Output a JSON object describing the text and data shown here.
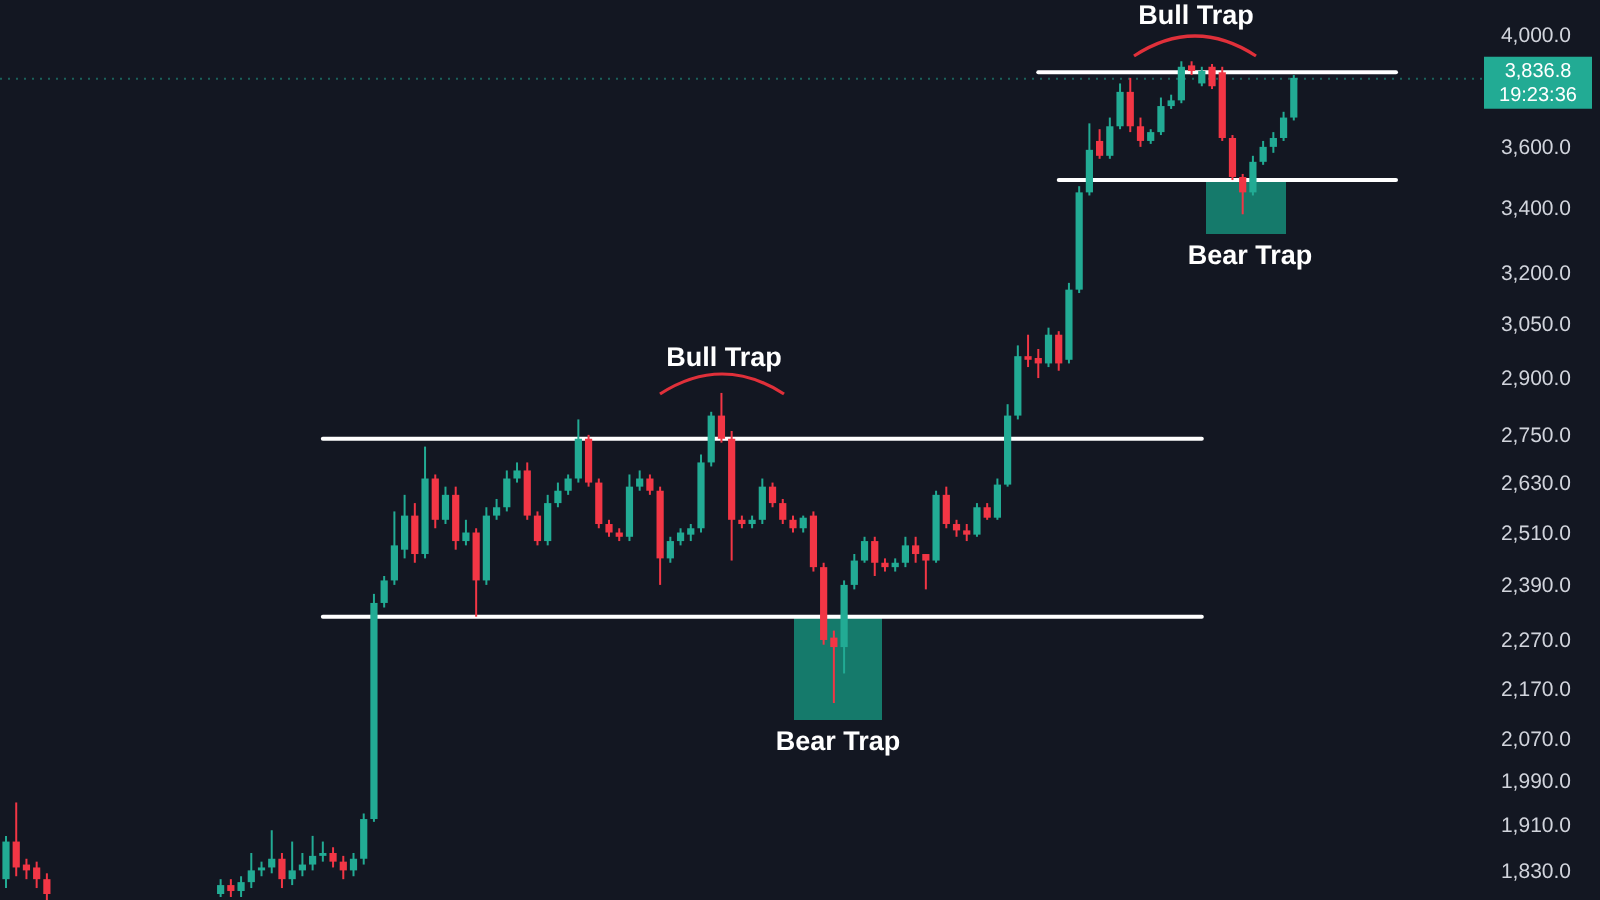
{
  "chart_data": {
    "type": "candlestick",
    "log": "y",
    "tick_labels": "y",
    "grid": false,
    "ylim": [
      1780,
      4130
    ],
    "yticks": [
      {
        "value": 4000,
        "label": "4,000.0"
      },
      {
        "value": 3600,
        "label": "3,600.0"
      },
      {
        "value": 3400,
        "label": "3,400.0"
      },
      {
        "value": 3200,
        "label": "3,200.0"
      },
      {
        "value": 3050,
        "label": "3,050.0"
      },
      {
        "value": 2900,
        "label": "2,900.0"
      },
      {
        "value": 2750,
        "label": "2,750.0"
      },
      {
        "value": 2630,
        "label": "2,630.0"
      },
      {
        "value": 2510,
        "label": "2,510.0"
      },
      {
        "value": 2390,
        "label": "2,390.0"
      },
      {
        "value": 2270,
        "label": "2,270.0"
      },
      {
        "value": 2170,
        "label": "2,170.0"
      },
      {
        "value": 2070,
        "label": "2,070.0"
      },
      {
        "value": 1990,
        "label": "1,990.0"
      },
      {
        "value": 1910,
        "label": "1,910.0"
      },
      {
        "value": 1830,
        "label": "1,830.0"
      }
    ],
    "categories": [
      null,
      null,
      null,
      null,
      null,
      null,
      null,
      null,
      null,
      null,
      null,
      null,
      null,
      null,
      null,
      null,
      null,
      null,
      null,
      null,
      null,
      null,
      null,
      null,
      null,
      null,
      null,
      null,
      null,
      null,
      null,
      null,
      null,
      null,
      null,
      null,
      null,
      null,
      null,
      null,
      null,
      null,
      null,
      null,
      null,
      null,
      null,
      null,
      null,
      null,
      null,
      null,
      null,
      null,
      null,
      null,
      null,
      null,
      null,
      null,
      null,
      null,
      null,
      null,
      null,
      null,
      null,
      null,
      null,
      null,
      null,
      null,
      null,
      null,
      null,
      null,
      null,
      null,
      null,
      null,
      null,
      null,
      null,
      null,
      null,
      null,
      null,
      null,
      null,
      null,
      null,
      null,
      null,
      null,
      null,
      null,
      null,
      null,
      null,
      null,
      null,
      null,
      null,
      null,
      null,
      null,
      null,
      null,
      null,
      null,
      null,
      null,
      null,
      null,
      null,
      null,
      null,
      null,
      null,
      null,
      null,
      null,
      null,
      null,
      null,
      null,
      null,
      null,
      null,
      null,
      null,
      null,
      null,
      null,
      null,
      null,
      null
    ],
    "ohlc": [
      [
        1815,
        1890,
        1800,
        1880
      ],
      [
        1880,
        1950,
        1820,
        1835
      ],
      [
        1840,
        1850,
        1815,
        1830
      ],
      [
        1835,
        1845,
        1800,
        1815
      ],
      [
        1815,
        1825,
        1780,
        1790
      ],
      null,
      null,
      null,
      null,
      null,
      null,
      null,
      null,
      null,
      null,
      null,
      null,
      null,
      null,
      null,
      null,
      [
        1790,
        1815,
        1785,
        1805
      ],
      [
        1805,
        1815,
        1785,
        1795
      ],
      [
        1795,
        1820,
        1785,
        1810
      ],
      [
        1810,
        1860,
        1800,
        1830
      ],
      [
        1830,
        1845,
        1820,
        1835
      ],
      [
        1835,
        1900,
        1825,
        1850
      ],
      [
        1850,
        1860,
        1800,
        1815
      ],
      [
        1815,
        1880,
        1805,
        1830
      ],
      [
        1830,
        1860,
        1820,
        1840
      ],
      [
        1840,
        1890,
        1830,
        1855
      ],
      [
        1855,
        1880,
        1845,
        1860
      ],
      [
        1860,
        1870,
        1835,
        1845
      ],
      [
        1845,
        1855,
        1815,
        1830
      ],
      [
        1830,
        1860,
        1820,
        1850
      ],
      [
        1850,
        1930,
        1840,
        1920
      ],
      [
        1920,
        2370,
        1915,
        2350
      ],
      [
        2350,
        2410,
        2340,
        2400
      ],
      [
        2400,
        2560,
        2390,
        2480
      ],
      [
        2470,
        2600,
        2450,
        2550
      ],
      [
        2550,
        2580,
        2440,
        2460
      ],
      [
        2460,
        2720,
        2450,
        2640
      ],
      [
        2640,
        2650,
        2520,
        2540
      ],
      [
        2540,
        2620,
        2530,
        2600
      ],
      [
        2600,
        2620,
        2470,
        2490
      ],
      [
        2490,
        2540,
        2480,
        2510
      ],
      [
        2510,
        2520,
        2320,
        2400
      ],
      [
        2400,
        2570,
        2390,
        2550
      ],
      [
        2550,
        2590,
        2540,
        2570
      ],
      [
        2570,
        2660,
        2560,
        2640
      ],
      [
        2640,
        2680,
        2630,
        2660
      ],
      [
        2660,
        2680,
        2540,
        2550
      ],
      [
        2550,
        2560,
        2480,
        2490
      ],
      [
        2490,
        2600,
        2480,
        2580
      ],
      [
        2580,
        2630,
        2570,
        2610
      ],
      [
        2610,
        2650,
        2600,
        2640
      ],
      [
        2640,
        2790,
        2630,
        2740
      ],
      [
        2740,
        2750,
        2620,
        2630
      ],
      [
        2630,
        2640,
        2520,
        2530
      ],
      [
        2530,
        2540,
        2500,
        2510
      ],
      [
        2510,
        2520,
        2490,
        2500
      ],
      [
        2500,
        2650,
        2490,
        2620
      ],
      [
        2620,
        2660,
        2610,
        2640
      ],
      [
        2640,
        2650,
        2600,
        2610
      ],
      [
        2610,
        2620,
        2390,
        2450
      ],
      [
        2450,
        2500,
        2440,
        2490
      ],
      [
        2490,
        2520,
        2480,
        2510
      ],
      [
        2505,
        2530,
        2490,
        2520
      ],
      [
        2520,
        2700,
        2510,
        2680
      ],
      [
        2680,
        2810,
        2670,
        2800
      ],
      [
        2800,
        2860,
        2730,
        2740
      ],
      [
        2740,
        2760,
        2445,
        2540
      ],
      [
        2540,
        2550,
        2520,
        2530
      ],
      [
        2530,
        2550,
        2520,
        2540
      ],
      [
        2540,
        2640,
        2530,
        2620
      ],
      [
        2620,
        2630,
        2570,
        2580
      ],
      [
        2580,
        2590,
        2530,
        2540
      ],
      [
        2540,
        2550,
        2510,
        2520
      ],
      [
        2520,
        2550,
        2510,
        2545
      ],
      [
        2550,
        2560,
        2420,
        2430
      ],
      [
        2430,
        2440,
        2260,
        2270
      ],
      [
        2275,
        2290,
        2140,
        2255
      ],
      [
        2255,
        2400,
        2200,
        2390
      ],
      [
        2390,
        2460,
        2380,
        2445
      ],
      [
        2445,
        2500,
        2440,
        2490
      ],
      [
        2490,
        2500,
        2410,
        2440
      ],
      [
        2440,
        2450,
        2420,
        2430
      ],
      [
        2430,
        2450,
        2420,
        2440
      ],
      [
        2440,
        2500,
        2430,
        2480
      ],
      [
        2480,
        2500,
        2440,
        2460
      ],
      [
        2460,
        2460,
        2380,
        2445
      ],
      [
        2445,
        2610,
        2440,
        2600
      ],
      [
        2600,
        2620,
        2520,
        2530
      ],
      [
        2530,
        2540,
        2500,
        2515
      ],
      [
        2515,
        2530,
        2490,
        2505
      ],
      [
        2505,
        2580,
        2500,
        2570
      ],
      [
        2570,
        2580,
        2540,
        2545
      ],
      [
        2545,
        2640,
        2540,
        2625
      ],
      [
        2625,
        2830,
        2620,
        2800
      ],
      [
        2800,
        2990,
        2790,
        2960
      ],
      [
        2960,
        3020,
        2930,
        2950
      ],
      [
        2955,
        2980,
        2900,
        2940
      ],
      [
        2940,
        3040,
        2930,
        3020
      ],
      [
        3020,
        3030,
        2920,
        2940
      ],
      [
        2950,
        3170,
        2940,
        3150
      ],
      [
        3150,
        3470,
        3140,
        3450
      ],
      [
        3450,
        3680,
        3440,
        3590
      ],
      [
        3620,
        3660,
        3560,
        3570
      ],
      [
        3570,
        3700,
        3560,
        3670
      ],
      [
        3670,
        3820,
        3660,
        3790
      ],
      [
        3790,
        3840,
        3650,
        3670
      ],
      [
        3670,
        3700,
        3600,
        3620
      ],
      [
        3620,
        3660,
        3610,
        3650
      ],
      [
        3650,
        3770,
        3640,
        3740
      ],
      [
        3740,
        3780,
        3730,
        3760
      ],
      [
        3760,
        3900,
        3750,
        3880
      ],
      [
        3885,
        3900,
        3850,
        3865
      ],
      [
        3820,
        3880,
        3810,
        3865
      ],
      [
        3880,
        3890,
        3800,
        3810
      ],
      [
        3860,
        3880,
        3620,
        3630
      ],
      [
        3630,
        3640,
        3490,
        3500
      ],
      [
        3500,
        3510,
        3380,
        3450
      ],
      [
        3450,
        3570,
        3440,
        3550
      ],
      [
        3550,
        3620,
        3540,
        3600
      ],
      [
        3600,
        3650,
        3580,
        3630
      ],
      [
        3630,
        3720,
        3620,
        3700
      ],
      [
        3700,
        3850,
        3690,
        3840
      ],
      null,
      null,
      null,
      null,
      null,
      null,
      null,
      null,
      null,
      null
    ],
    "series": [
      {
        "type": "line",
        "color": "#ffffff",
        "values": [
          null,
          null,
          null,
          null,
          null,
          null,
          null,
          null,
          null,
          null,
          null,
          null,
          null,
          null,
          null,
          null,
          null,
          null,
          null,
          null,
          null,
          null,
          null,
          null,
          null,
          null,
          null,
          null,
          null,
          null,
          null,
          2740,
          2740,
          2740,
          2740,
          2740,
          2740,
          2740,
          2740,
          2740,
          2740,
          2740,
          2740,
          2740,
          2740,
          2740,
          2740,
          2740,
          2740,
          2740,
          2740,
          2740,
          2740,
          2740,
          2740,
          2740,
          2740,
          2740,
          2740,
          2740,
          2740,
          2740,
          2740,
          2740,
          2740,
          2740,
          2740,
          2740,
          2740,
          2740,
          2740,
          2740,
          2740,
          2740,
          2740,
          2740,
          2740,
          2740,
          2740,
          2740,
          2740,
          2740,
          2740,
          2740,
          2740,
          2740,
          2740,
          2740,
          2740,
          2740,
          2740,
          2740,
          2740,
          2740,
          2740,
          2740,
          2740,
          2740,
          2740,
          2740,
          2740,
          2740,
          2740,
          2740,
          2740,
          2740,
          2740,
          2740,
          2740,
          2740,
          2740,
          2740,
          2740,
          2740,
          2740,
          2740,
          2740,
          2740,
          null,
          null,
          null,
          null,
          null,
          null,
          null,
          null,
          null,
          null,
          null,
          null,
          null,
          null,
          null,
          null,
          null,
          null,
          null
        ]
      },
      {
        "type": "line",
        "color": "#ffffff",
        "values": [
          null,
          null,
          null,
          null,
          null,
          null,
          null,
          null,
          null,
          null,
          null,
          null,
          null,
          null,
          null,
          null,
          null,
          null,
          null,
          null,
          null,
          null,
          null,
          null,
          null,
          null,
          null,
          null,
          null,
          null,
          null,
          2320,
          2320,
          2320,
          2320,
          2320,
          2320,
          2320,
          2320,
          2320,
          2320,
          2320,
          2320,
          2320,
          2320,
          2320,
          2320,
          2320,
          2320,
          2320,
          2320,
          2320,
          2320,
          2320,
          2320,
          2320,
          2320,
          2320,
          2320,
          2320,
          2320,
          2320,
          2320,
          2320,
          2320,
          2320,
          2320,
          2320,
          2320,
          2320,
          2320,
          2320,
          2320,
          2320,
          2320,
          2320,
          2320,
          2320,
          2320,
          2320,
          2320,
          2320,
          2320,
          2320,
          2320,
          2320,
          2320,
          2320,
          2320,
          2320,
          2320,
          2320,
          2320,
          2320,
          2320,
          2320,
          2320,
          2320,
          2320,
          2320,
          2320,
          2320,
          2320,
          2320,
          2320,
          2320,
          2320,
          2320,
          2320,
          2320,
          2320,
          2320,
          2320,
          2320,
          2320,
          2320,
          2320,
          2320,
          null,
          null,
          null,
          null,
          null,
          null,
          null,
          null,
          null,
          null,
          null,
          null,
          null,
          null,
          null,
          null,
          null,
          null,
          null
        ]
      },
      {
        "type": "line",
        "color": "#ffffff",
        "values": [
          null,
          null,
          null,
          null,
          null,
          null,
          null,
          null,
          null,
          null,
          null,
          null,
          null,
          null,
          null,
          null,
          null,
          null,
          null,
          null,
          null,
          null,
          null,
          null,
          null,
          null,
          null,
          null,
          null,
          null,
          null,
          null,
          null,
          null,
          null,
          null,
          null,
          null,
          null,
          null,
          null,
          null,
          null,
          null,
          null,
          null,
          null,
          null,
          null,
          null,
          null,
          null,
          null,
          null,
          null,
          null,
          null,
          null,
          null,
          null,
          null,
          null,
          null,
          null,
          null,
          null,
          null,
          null,
          null,
          null,
          null,
          null,
          null,
          null,
          null,
          null,
          null,
          null,
          null,
          null,
          null,
          null,
          null,
          null,
          null,
          null,
          null,
          null,
          null,
          null,
          null,
          null,
          null,
          null,
          null,
          null,
          null,
          null,
          null,
          null,
          null,
          3860,
          3860,
          3860,
          3860,
          3860,
          3860,
          3860,
          3860,
          3860,
          3860,
          3860,
          3860,
          3860,
          3860,
          3860,
          3860,
          3860,
          3860,
          3860,
          3860,
          3860,
          3860,
          3860,
          3860,
          3860,
          3860,
          3860,
          3860,
          3860,
          3860,
          3860,
          3860,
          3860,
          3860,
          3860,
          3860
        ]
      },
      {
        "type": "line",
        "color": "#ffffff",
        "values": [
          null,
          null,
          null,
          null,
          null,
          null,
          null,
          null,
          null,
          null,
          null,
          null,
          null,
          null,
          null,
          null,
          null,
          null,
          null,
          null,
          null,
          null,
          null,
          null,
          null,
          null,
          null,
          null,
          null,
          null,
          null,
          null,
          null,
          null,
          null,
          null,
          null,
          null,
          null,
          null,
          null,
          null,
          null,
          null,
          null,
          null,
          null,
          null,
          null,
          null,
          null,
          null,
          null,
          null,
          null,
          null,
          null,
          null,
          null,
          null,
          null,
          null,
          null,
          null,
          null,
          null,
          null,
          null,
          null,
          null,
          null,
          null,
          null,
          null,
          null,
          null,
          null,
          null,
          null,
          null,
          null,
          null,
          null,
          null,
          null,
          null,
          null,
          null,
          null,
          null,
          null,
          null,
          null,
          null,
          null,
          null,
          null,
          null,
          null,
          null,
          null,
          null,
          null,
          3490,
          3490,
          3490,
          3490,
          3490,
          3490,
          3490,
          3490,
          3490,
          3490,
          3490,
          3490,
          3490,
          3490,
          3490,
          3490,
          3490,
          3490,
          3490,
          3490,
          3490,
          3490,
          3490,
          3490,
          3490,
          3490,
          3490,
          3490,
          3490,
          3490,
          3490,
          3490,
          3490,
          3490
        ]
      }
    ],
    "ref_lines": [
      {
        "axis": "y",
        "value": 3836.8,
        "label": "3,836.8\n19:23:36",
        "color": "#22ab94",
        "line_style": "dotted"
      }
    ],
    "annotations": [
      "Bull Trap",
      "Bear Trap",
      "Bull Trap",
      "Bear Trap"
    ]
  }
}
